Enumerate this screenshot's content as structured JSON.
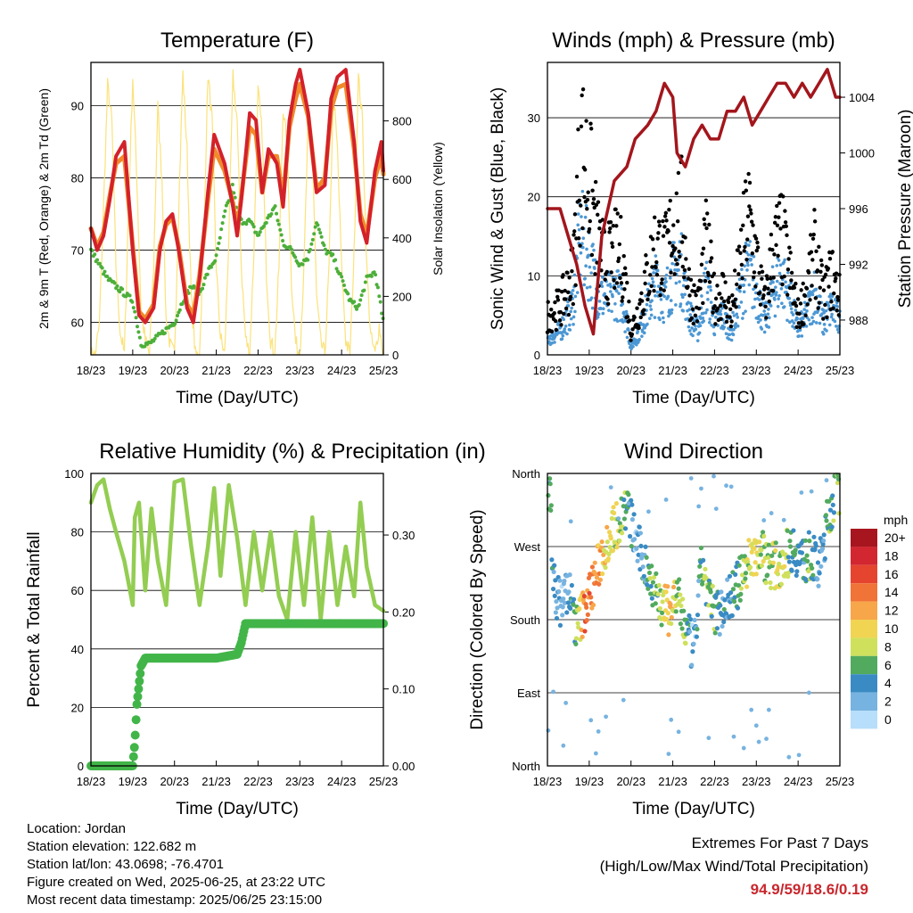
{
  "footer": {
    "location": "Location: Jordan",
    "elevation": "Station elevation: 122.682 m",
    "latlon": "Station lat/lon: 43.0698; -76.4701",
    "created": "Figure created on Wed, 2025-06-25, at 23:22 UTC",
    "recent": "Most recent data timestamp: 2025/06/25 23:15:00"
  },
  "extremes": {
    "title": "Extremes For Past 7 Days",
    "subtitle": "(High/Low/Max Wind/Total Precipitation)",
    "values": "94.9/59/18.6/0.19"
  },
  "colors": {
    "temp2m": "#d3212a",
    "temp9m": "#f08a2c",
    "dewpoint": "#4daf3a",
    "solar": "#fbe27a",
    "gust": "#000000",
    "wind": "#4b97d4",
    "pressure": "#a3161c",
    "rh": "#93cd52",
    "precip": "#42b549"
  },
  "chart_data": [
    {
      "type": "line",
      "title": "Temperature (F)",
      "xlabel": "Time (Day/UTC)",
      "ylabel": "2m & 9m T (Red, Orange) & 2m Td (Green)",
      "y2label": "Solar Insolation (Yellow)",
      "x_ticks": [
        "18/23",
        "19/23",
        "20/23",
        "21/23",
        "22/23",
        "23/23",
        "24/23",
        "25/23"
      ],
      "ylim": [
        55.5,
        96
      ],
      "y_ticks": [
        60,
        70,
        80,
        90
      ],
      "y2lim": [
        0,
        1000
      ],
      "y2_ticks": [
        0,
        200,
        400,
        600,
        800
      ],
      "grid": "horizontal",
      "series": [
        {
          "x": [
            0,
            0.15,
            0.3,
            0.45,
            0.6,
            0.8,
            1.0,
            1.15,
            1.3,
            1.5,
            1.65,
            1.8,
            1.95,
            2.1,
            2.3,
            2.45,
            2.6,
            2.8,
            2.95,
            3.2,
            3.4,
            3.5,
            3.6,
            3.8,
            3.95,
            4.1,
            4.25,
            4.45,
            4.6,
            4.75,
            4.9,
            5.0,
            5.2,
            5.4,
            5.6,
            5.75,
            5.9,
            6.1,
            6.3,
            6.45,
            6.6,
            6.8,
            6.95,
            7.0
          ],
          "values": [
            73,
            70,
            72,
            77,
            83,
            85,
            70,
            61,
            60,
            62,
            70,
            74,
            75,
            70,
            62,
            60,
            66,
            78,
            86,
            82,
            76,
            72,
            77,
            89,
            88,
            78,
            84,
            82,
            76,
            88,
            93,
            95,
            89,
            78,
            79,
            91,
            94,
            95,
            85,
            74,
            71,
            81,
            85,
            81
          ]
        },
        {
          "x": [
            0,
            0.15,
            0.3,
            0.45,
            0.6,
            0.8,
            1.0,
            1.15,
            1.3,
            1.5,
            1.65,
            1.8,
            1.95,
            2.1,
            2.3,
            2.45,
            2.6,
            2.8,
            2.95,
            3.2,
            3.4,
            3.5,
            3.6,
            3.8,
            3.95,
            4.1,
            4.25,
            4.45,
            4.6,
            4.75,
            4.9,
            5.0,
            5.2,
            5.4,
            5.6,
            5.75,
            5.9,
            6.1,
            6.3,
            6.45,
            6.6,
            6.8,
            6.95,
            7.0
          ],
          "values": [
            73,
            70.5,
            72.5,
            77.5,
            82,
            83,
            70.5,
            61.5,
            60.5,
            62.5,
            70.5,
            73.5,
            74.5,
            70.5,
            62.5,
            61,
            66.5,
            77,
            84,
            81,
            76.5,
            73,
            77.5,
            87,
            86,
            78,
            83,
            83,
            77,
            87,
            91,
            93,
            88.5,
            78.5,
            80,
            89.5,
            92.5,
            93,
            84,
            75,
            72,
            80,
            83,
            80.5
          ]
        },
        {
          "x": [
            0,
            0.2,
            0.4,
            0.6,
            0.8,
            1.0,
            1.2,
            1.4,
            1.6,
            1.8,
            2.0,
            2.2,
            2.4,
            2.6,
            2.8,
            3.0,
            3.2,
            3.4,
            3.5,
            3.6,
            3.8,
            4.0,
            4.2,
            4.4,
            4.6,
            4.8,
            5.0,
            5.2,
            5.4,
            5.6,
            5.8,
            6.0,
            6.2,
            6.4,
            6.6,
            6.8,
            7.0
          ],
          "values": [
            70,
            68,
            66,
            65,
            64,
            63,
            57,
            57,
            58,
            59,
            60,
            63,
            65,
            64,
            67,
            69,
            75,
            79,
            75,
            74,
            74,
            72,
            74,
            76,
            71,
            70,
            68,
            69,
            74,
            70,
            69,
            66,
            63,
            62,
            66,
            67,
            60
          ]
        },
        {
          "x": [
            0,
            0.1,
            0.2,
            0.3,
            0.4,
            0.5,
            0.6,
            0.7,
            0.8,
            0.9,
            1.0,
            1.1,
            1.2,
            1.3,
            1.4,
            1.5,
            1.6,
            1.7,
            1.8,
            1.9,
            2.0,
            2.1,
            2.2,
            2.3,
            2.4,
            2.5,
            2.6,
            2.7,
            2.8,
            2.9,
            3.0,
            3.1,
            3.2,
            3.3,
            3.4,
            3.5,
            3.6,
            3.7,
            3.8,
            3.9,
            4.0,
            4.1,
            4.2,
            4.3,
            4.4,
            4.5,
            4.6,
            4.7,
            4.8,
            4.9,
            5.0,
            5.1,
            5.2,
            5.3,
            5.4,
            5.5,
            5.6,
            5.7,
            5.8,
            5.9,
            6.0,
            6.1,
            6.2,
            6.3,
            6.4,
            6.5,
            6.6,
            6.7,
            6.8,
            6.9,
            7.0
          ],
          "values": [
            0,
            0,
            100,
            500,
            920,
            800,
            300,
            80,
            0,
            500,
            950,
            600,
            150,
            50,
            0,
            300,
            850,
            600,
            120,
            30,
            0,
            500,
            960,
            700,
            200,
            0,
            0,
            400,
            960,
            800,
            300,
            60,
            0,
            400,
            950,
            800,
            300,
            60,
            0,
            350,
            900,
            750,
            280,
            50,
            0,
            300,
            850,
            700,
            250,
            40,
            0,
            300,
            800,
            700,
            200,
            40,
            0,
            300,
            900,
            700,
            300,
            50,
            0,
            350,
            950,
            800,
            300,
            60,
            0,
            100,
            0
          ]
        }
      ]
    },
    {
      "type": "scatter",
      "title": "Winds (mph) & Pressure (mb)",
      "xlabel": "Time (Day/UTC)",
      "ylabel": "Sonic Wind & Gust (Blue, Black)",
      "y2label": "Station Pressure (Maroon)",
      "x_ticks": [
        "18/23",
        "19/23",
        "20/23",
        "21/23",
        "22/23",
        "23/23",
        "24/23",
        "25/23"
      ],
      "ylim": [
        0,
        37
      ],
      "y_ticks": [
        0,
        10,
        20,
        30
      ],
      "y2lim": [
        985.5,
        1006.5
      ],
      "y2_ticks": [
        988,
        992,
        996,
        1000,
        1004
      ],
      "grid": "horizontal",
      "series": [
        {
          "x": [
            0,
            0.3,
            0.6,
            0.8,
            1.0,
            1.2,
            1.4,
            1.6,
            1.8,
            2.0,
            2.2,
            2.4,
            2.6,
            2.8,
            3.0,
            3.2,
            3.4,
            3.6,
            3.8,
            4.0,
            4.2,
            4.4,
            4.6,
            4.8,
            5.0,
            5.2,
            5.4,
            5.6,
            5.8,
            6.0,
            6.2,
            6.4,
            6.6,
            6.8,
            7.0
          ],
          "values": [
            5,
            6,
            10,
            26,
            22,
            14,
            11,
            13,
            12,
            3,
            6,
            10,
            14,
            12,
            16,
            18,
            8,
            6,
            14,
            7,
            8,
            5,
            11,
            18,
            12,
            6,
            13,
            15,
            10,
            5,
            8,
            13,
            7,
            10,
            7
          ]
        },
        {
          "x": [
            0,
            0.3,
            0.6,
            0.8,
            1.0,
            1.2,
            1.4,
            1.6,
            1.8,
            2.0,
            2.2,
            2.4,
            2.6,
            2.8,
            3.0,
            3.2,
            3.4,
            3.6,
            3.8,
            4.0,
            4.2,
            4.4,
            4.6,
            4.8,
            5.0,
            5.2,
            5.4,
            5.6,
            5.8,
            6.0,
            6.2,
            6.4,
            6.6,
            6.8,
            7.0
          ],
          "values": [
            2,
            3,
            6,
            15,
            12,
            8,
            7,
            8,
            7,
            1,
            3,
            6,
            9,
            7,
            10,
            11,
            5,
            3,
            9,
            4,
            5,
            3,
            7,
            11,
            8,
            4,
            8,
            10,
            7,
            3,
            5,
            8,
            4,
            6,
            4
          ]
        },
        {
          "x": [
            0,
            0.3,
            0.5,
            0.7,
            0.9,
            1.1,
            1.3,
            1.6,
            1.9,
            2.1,
            2.4,
            2.6,
            2.8,
            3.0,
            3.1,
            3.3,
            3.5,
            3.7,
            3.9,
            4.1,
            4.3,
            4.5,
            4.7,
            4.9,
            5.1,
            5.3,
            5.5,
            5.7,
            5.9,
            6.1,
            6.3,
            6.5,
            6.7,
            6.9,
            7.0
          ],
          "values": [
            996,
            996,
            994,
            992,
            989,
            987,
            994,
            998,
            999,
            1001,
            1002,
            1003,
            1005,
            1004,
            1000,
            999,
            1001,
            1002,
            1001,
            1001,
            1003,
            1003,
            1004,
            1002,
            1003,
            1004,
            1005,
            1005,
            1004,
            1005,
            1004,
            1005,
            1006,
            1004,
            1004
          ]
        }
      ]
    },
    {
      "type": "line",
      "title": "Relative Humidity (%) & Precipitation (in)",
      "xlabel": "Time (Day/UTC)",
      "ylabel": "Percent & Total Rainfall",
      "x_ticks": [
        "18/23",
        "19/23",
        "20/23",
        "21/23",
        "22/23",
        "23/23",
        "24/23",
        "25/23"
      ],
      "ylim": [
        0,
        100
      ],
      "y_ticks": [
        0,
        20,
        40,
        60,
        80,
        100
      ],
      "y2lim": [
        0,
        0.38
      ],
      "y2_ticks": [
        "0.00",
        "0.10",
        "0.20",
        "0.30"
      ],
      "grid": "horizontal",
      "series": [
        {
          "x": [
            0,
            0.15,
            0.3,
            0.45,
            0.6,
            0.8,
            1.0,
            1.05,
            1.15,
            1.3,
            1.45,
            1.6,
            1.8,
            2.0,
            2.2,
            2.4,
            2.6,
            2.8,
            2.95,
            3.1,
            3.3,
            3.5,
            3.7,
            3.9,
            4.1,
            4.3,
            4.5,
            4.7,
            4.9,
            5.1,
            5.3,
            5.5,
            5.7,
            5.9,
            6.1,
            6.3,
            6.45,
            6.6,
            6.8,
            7.0
          ],
          "values": [
            90,
            96,
            98,
            88,
            80,
            70,
            55,
            85,
            90,
            60,
            88,
            70,
            55,
            97,
            98,
            75,
            55,
            75,
            95,
            65,
            96,
            78,
            55,
            80,
            60,
            80,
            58,
            50,
            80,
            55,
            85,
            50,
            80,
            55,
            75,
            58,
            90,
            68,
            55,
            53
          ]
        },
        {
          "x": [
            0,
            0.3,
            0.6,
            0.9,
            1.0,
            1.05,
            1.1,
            1.2,
            1.3,
            1.5,
            2.0,
            2.5,
            3.0,
            3.5,
            3.6,
            3.7,
            4.0,
            5.0,
            6.0,
            7.0
          ],
          "values": [
            0,
            0,
            0,
            0,
            0,
            0.03,
            0.08,
            0.13,
            0.14,
            0.14,
            0.14,
            0.14,
            0.14,
            0.145,
            0.16,
            0.185,
            0.185,
            0.185,
            0.185,
            0.185
          ]
        }
      ]
    },
    {
      "type": "scatter",
      "title": "Wind Direction",
      "xlabel": "Time (Day/UTC)",
      "ylabel": "Direction (Colored By Speed)",
      "x_ticks": [
        "18/23",
        "19/23",
        "20/23",
        "21/23",
        "22/23",
        "23/23",
        "24/23",
        "25/23"
      ],
      "y_ticks": [
        "North",
        "East",
        "South",
        "West",
        "North"
      ],
      "ylim": [
        0,
        360
      ],
      "legend_title": "mph",
      "legend_labels": [
        "20+",
        "18",
        "16",
        "14",
        "12",
        "10",
        "8",
        "6",
        "4",
        "2",
        "0"
      ],
      "legend_colors": [
        "#a7151f",
        "#d22630",
        "#e5442f",
        "#f07337",
        "#f8a64a",
        "#f0d452",
        "#cfe05c",
        "#52aa5f",
        "#3a8bc4",
        "#77b3e0",
        "#b7defa"
      ],
      "legend_placement": "right",
      "grid": "horizontal",
      "series": [
        {
          "x": [
            0.1,
            0.3,
            0.5,
            0.7,
            0.9,
            1.1,
            1.3,
            1.5,
            1.7,
            1.9,
            2.1,
            2.3,
            2.5,
            2.7,
            2.9,
            3.1,
            3.3,
            3.5,
            3.7,
            3.9,
            4.1,
            4.3,
            4.5,
            4.7,
            4.9,
            5.1,
            5.3,
            5.5,
            5.7,
            5.9,
            6.1,
            6.3,
            6.5,
            6.7,
            6.9
          ],
          "directions": [
            230,
            200,
            220,
            170,
            195,
            225,
            260,
            285,
            300,
            320,
            280,
            250,
            230,
            200,
            190,
            210,
            170,
            140,
            250,
            195,
            190,
            205,
            215,
            240,
            260,
            265,
            250,
            245,
            260,
            270,
            250,
            260,
            240,
            300,
            340
          ],
          "speeds": [
            4,
            3,
            2,
            6,
            15,
            13,
            11,
            9,
            8,
            6,
            2,
            4,
            6,
            7,
            12,
            8,
            6,
            2,
            6,
            6,
            4,
            3,
            5,
            8,
            9,
            8,
            6,
            9,
            7,
            4,
            4,
            6,
            3,
            5,
            6
          ]
        }
      ]
    }
  ]
}
